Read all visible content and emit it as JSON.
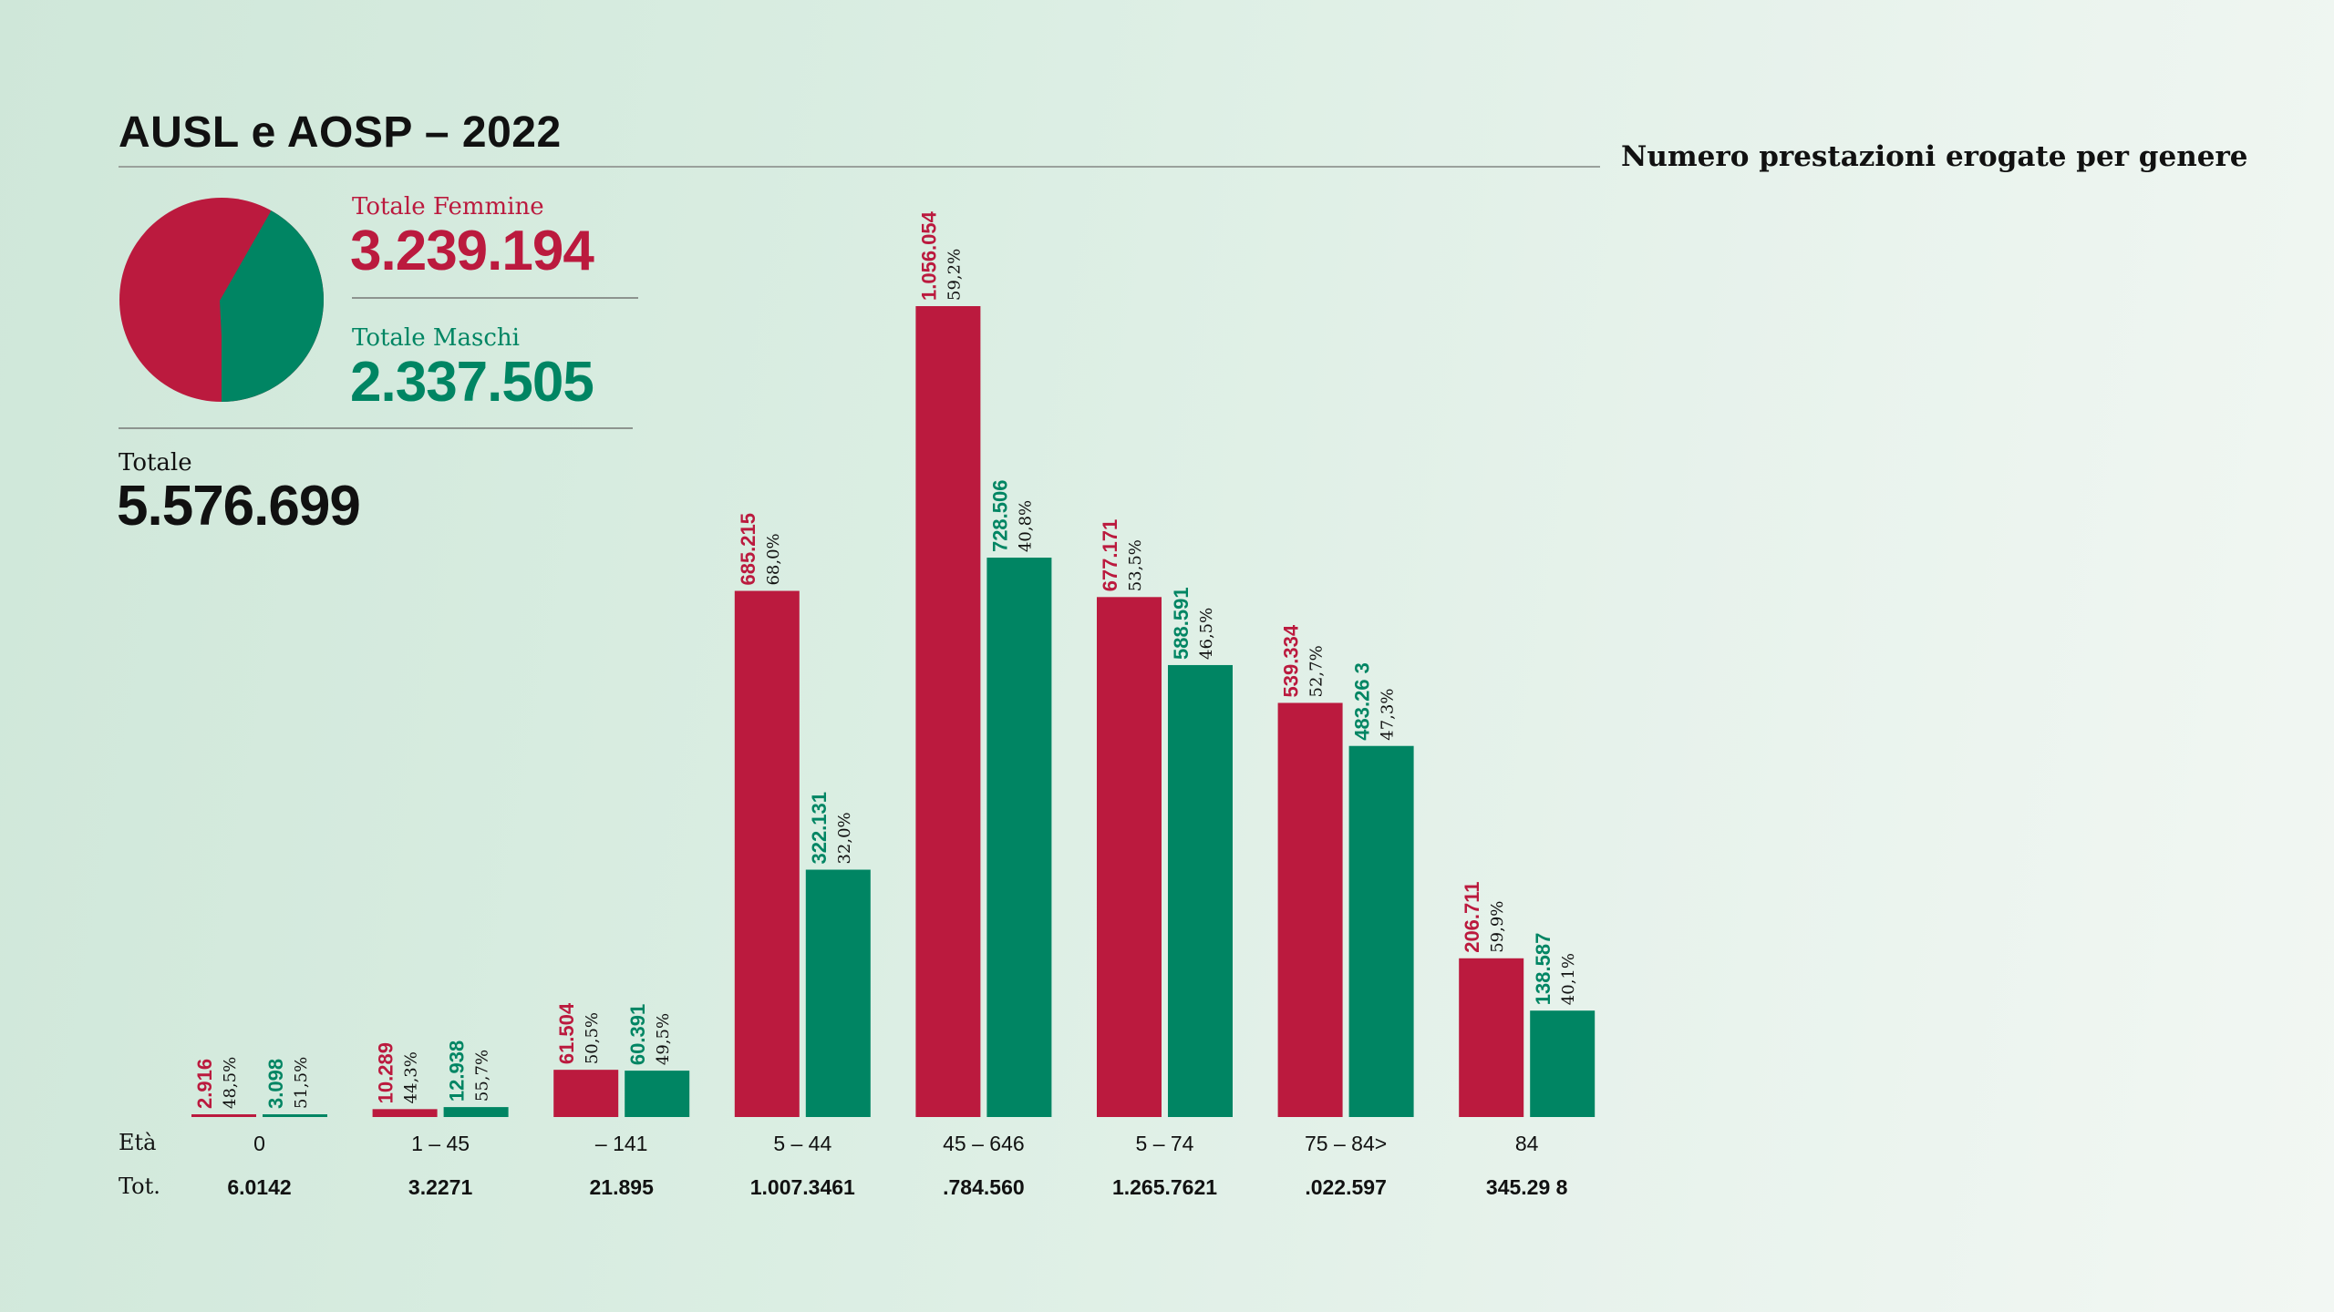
{
  "title": "AUSL e AOSP – 2022",
  "subtitle": "Numero prestazioni erogate per genere",
  "summary": {
    "female_label": "Totale Femmine",
    "female_value": "3.239.194",
    "male_label": "Totale Maschi",
    "male_value": "2.337.505",
    "total_label": "Totale",
    "total_value": "5.576.699"
  },
  "row_labels": {
    "age": "Età",
    "total": "Tot."
  },
  "colors": {
    "female": "#bb1a3e",
    "male": "#008563"
  },
  "pie_data": {
    "type": "pie",
    "female_value": 3239194,
    "male_value": 2337505
  },
  "chart_data": {
    "type": "bar",
    "categories": [
      "0",
      "1 – 45",
      "– 141",
      "5 – 44",
      "45 – 646",
      "5 – 74",
      "75 – 84>",
      "84"
    ],
    "totals": [
      "6.0142",
      "3.2271",
      "21.895",
      "1.007.3461",
      ".784.560",
      "1.265.7621",
      ".022.597",
      "345.29 8"
    ],
    "ylim": [
      0,
      1056054
    ],
    "series": [
      {
        "key": "female",
        "values": [
          2916,
          10289,
          61504,
          685215,
          1056054,
          677171,
          539334,
          206711
        ],
        "value_labels": [
          "2.916",
          "10.289",
          "61.504",
          "685.215",
          "1.056.054",
          "677.171",
          "539.334",
          "206.711"
        ],
        "pct_labels": [
          "48,5%",
          "44,3%",
          "50,5%",
          "68,0%",
          "59,2%",
          "53,5%",
          "52,7%",
          "59,9%"
        ]
      },
      {
        "key": "male",
        "values": [
          3098,
          12938,
          60391,
          322131,
          728506,
          588591,
          483263,
          138587
        ],
        "value_labels": [
          "3.098",
          "12.938",
          "60.391",
          "322.131",
          "728.506",
          "588.591",
          "483.26 3",
          "138.587"
        ],
        "pct_labels": [
          "51,5%",
          "55,7%",
          "49,5%",
          "32,0%",
          "40,8%",
          "46,5%",
          "47,3%",
          "40,1%"
        ]
      }
    ]
  }
}
